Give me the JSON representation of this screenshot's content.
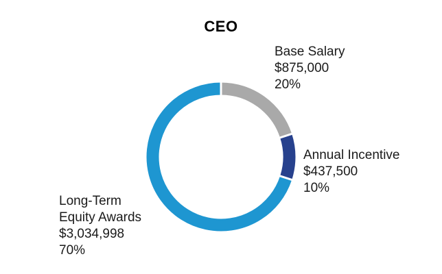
{
  "chart_data": {
    "type": "pie",
    "title": "CEO",
    "slices": [
      {
        "label": "Base Salary",
        "amount": "$875,000",
        "percent_text": "20%",
        "value": 20,
        "color": "#a9a9a9"
      },
      {
        "label": "Annual Incentive",
        "amount": "$437,500",
        "percent_text": "10%",
        "value": 10,
        "color": "#27418d"
      },
      {
        "label": "Long-Term Equity Awards",
        "label_lines": [
          "Long-Term",
          "Equity Awards"
        ],
        "amount": "$3,034,998",
        "percent_text": "70%",
        "value": 70,
        "color": "#1e96d1"
      }
    ]
  }
}
